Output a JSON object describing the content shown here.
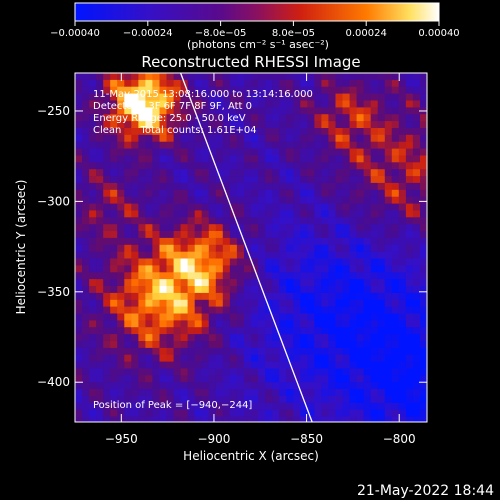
{
  "chart_data": {
    "type": "heatmap",
    "title": "Reconstructed RHESSI Image",
    "xlabel": "Heliocentric X (arcsec)",
    "ylabel": "Heliocentric Y (arcsec)",
    "xlim": [
      -975,
      -785
    ],
    "ylim": [
      -422,
      -229
    ],
    "x_ticks": [
      -950,
      -900,
      -850,
      -800
    ],
    "x_tick_labels": [
      "−950",
      "−900",
      "−850",
      "−800"
    ],
    "y_ticks": [
      -250,
      -300,
      -350,
      -400
    ],
    "y_tick_labels": [
      "−250",
      "−300",
      "−350",
      "−400"
    ],
    "colorbar": {
      "range": [
        -0.0004,
        0.0004
      ],
      "tick_labels": [
        "−0.00040",
        "−0.00024",
        "−8.0e−05",
        "8.0e−05",
        "0.00024",
        "0.00040"
      ],
      "unit_label": "(photons cm⁻² s⁻¹ asec⁻²)",
      "colors": [
        "#0014ff",
        "#4a0a9a",
        "#5c0a8a",
        "#b01818",
        "#ff5000",
        "#ffd040",
        "#ffffff"
      ]
    },
    "info_lines": [
      "11-May-2015 13:08:16.000 to 13:14:16.000",
      "Detectors: 3F 6F 7F 8F 9F, Att 0",
      "Energy Range: 25.0 - 50.0 keV",
      "Clean      Total counts: 1.61E+04"
    ],
    "peak_label": "Position of Peak = [−940,−244]",
    "peak": [
      -940,
      -244
    ],
    "limb_line": [
      [
        -918,
        -229
      ],
      [
        -847,
        -422
      ]
    ]
  },
  "footer": {
    "timestamp": "21-May-2022 18:44"
  }
}
